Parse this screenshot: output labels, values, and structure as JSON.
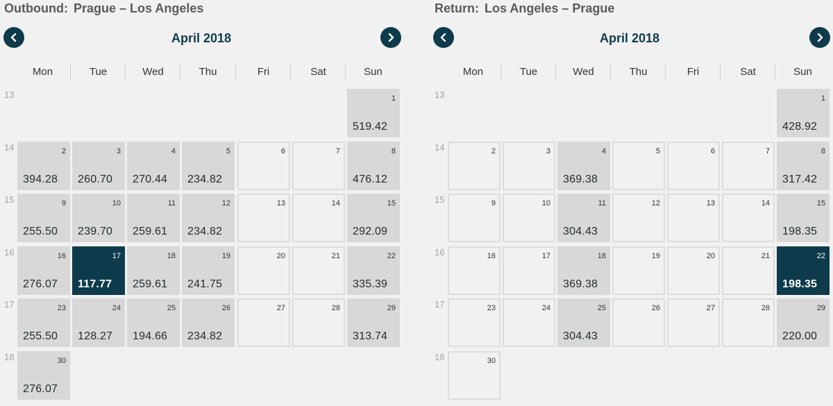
{
  "colors": {
    "accent": "#0d3b4b",
    "price_cell": "#d8d8d8",
    "background": "#f1f1f1"
  },
  "weekdays": [
    "Mon",
    "Tue",
    "Wed",
    "Thu",
    "Fri",
    "Sat",
    "Sun"
  ],
  "outbound": {
    "label": "Outbound:",
    "route": "Prague – Los Angeles",
    "month": "April 2018",
    "prev_icon": "chevron-left-icon",
    "next_icon": "chevron-right-icon",
    "weeks": [
      {
        "week": "13",
        "days": [
          null,
          null,
          null,
          null,
          null,
          null,
          {
            "day": "1",
            "price": "519.42"
          }
        ]
      },
      {
        "week": "14",
        "days": [
          {
            "day": "2",
            "price": "394.28"
          },
          {
            "day": "3",
            "price": "260.70"
          },
          {
            "day": "4",
            "price": "270.44"
          },
          {
            "day": "5",
            "price": "234.82"
          },
          {
            "day": "6",
            "price": ""
          },
          {
            "day": "7",
            "price": ""
          },
          {
            "day": "8",
            "price": "476.12"
          }
        ]
      },
      {
        "week": "15",
        "days": [
          {
            "day": "9",
            "price": "255.50"
          },
          {
            "day": "10",
            "price": "239.70"
          },
          {
            "day": "11",
            "price": "259.61"
          },
          {
            "day": "12",
            "price": "234.82"
          },
          {
            "day": "13",
            "price": ""
          },
          {
            "day": "14",
            "price": ""
          },
          {
            "day": "15",
            "price": "292.09"
          }
        ]
      },
      {
        "week": "16",
        "days": [
          {
            "day": "16",
            "price": "276.07"
          },
          {
            "day": "17",
            "price": "117.77",
            "selected": true
          },
          {
            "day": "18",
            "price": "259.61"
          },
          {
            "day": "19",
            "price": "241.75"
          },
          {
            "day": "20",
            "price": ""
          },
          {
            "day": "21",
            "price": ""
          },
          {
            "day": "22",
            "price": "335.39"
          }
        ]
      },
      {
        "week": "17",
        "days": [
          {
            "day": "23",
            "price": "255.50"
          },
          {
            "day": "24",
            "price": "128.27"
          },
          {
            "day": "25",
            "price": "194.66"
          },
          {
            "day": "26",
            "price": "234.82"
          },
          {
            "day": "27",
            "price": ""
          },
          {
            "day": "28",
            "price": ""
          },
          {
            "day": "29",
            "price": "313.74"
          }
        ]
      },
      {
        "week": "18",
        "days": [
          {
            "day": "30",
            "price": "276.07"
          },
          null,
          null,
          null,
          null,
          null,
          null
        ]
      }
    ]
  },
  "return": {
    "label": "Return:",
    "route": "Los Angeles – Prague",
    "month": "April 2018",
    "prev_icon": "chevron-left-icon",
    "next_icon": "chevron-right-icon",
    "weeks": [
      {
        "week": "13",
        "days": [
          null,
          null,
          null,
          null,
          null,
          null,
          {
            "day": "1",
            "price": "428.92"
          }
        ]
      },
      {
        "week": "14",
        "days": [
          {
            "day": "2",
            "price": ""
          },
          {
            "day": "3",
            "price": ""
          },
          {
            "day": "4",
            "price": "369.38"
          },
          {
            "day": "5",
            "price": ""
          },
          {
            "day": "6",
            "price": ""
          },
          {
            "day": "7",
            "price": ""
          },
          {
            "day": "8",
            "price": "317.42"
          }
        ]
      },
      {
        "week": "15",
        "days": [
          {
            "day": "9",
            "price": ""
          },
          {
            "day": "10",
            "price": ""
          },
          {
            "day": "11",
            "price": "304.43"
          },
          {
            "day": "12",
            "price": ""
          },
          {
            "day": "13",
            "price": ""
          },
          {
            "day": "14",
            "price": ""
          },
          {
            "day": "15",
            "price": "198.35"
          }
        ]
      },
      {
        "week": "16",
        "days": [
          {
            "day": "16",
            "price": ""
          },
          {
            "day": "17",
            "price": ""
          },
          {
            "day": "18",
            "price": "369.38"
          },
          {
            "day": "19",
            "price": ""
          },
          {
            "day": "20",
            "price": ""
          },
          {
            "day": "21",
            "price": ""
          },
          {
            "day": "22",
            "price": "198.35",
            "selected": true
          }
        ]
      },
      {
        "week": "17",
        "days": [
          {
            "day": "23",
            "price": ""
          },
          {
            "day": "24",
            "price": ""
          },
          {
            "day": "25",
            "price": "304.43"
          },
          {
            "day": "26",
            "price": ""
          },
          {
            "day": "27",
            "price": ""
          },
          {
            "day": "28",
            "price": ""
          },
          {
            "day": "29",
            "price": "220.00"
          }
        ]
      },
      {
        "week": "18",
        "days": [
          {
            "day": "30",
            "price": ""
          },
          null,
          null,
          null,
          null,
          null,
          null
        ]
      }
    ]
  }
}
